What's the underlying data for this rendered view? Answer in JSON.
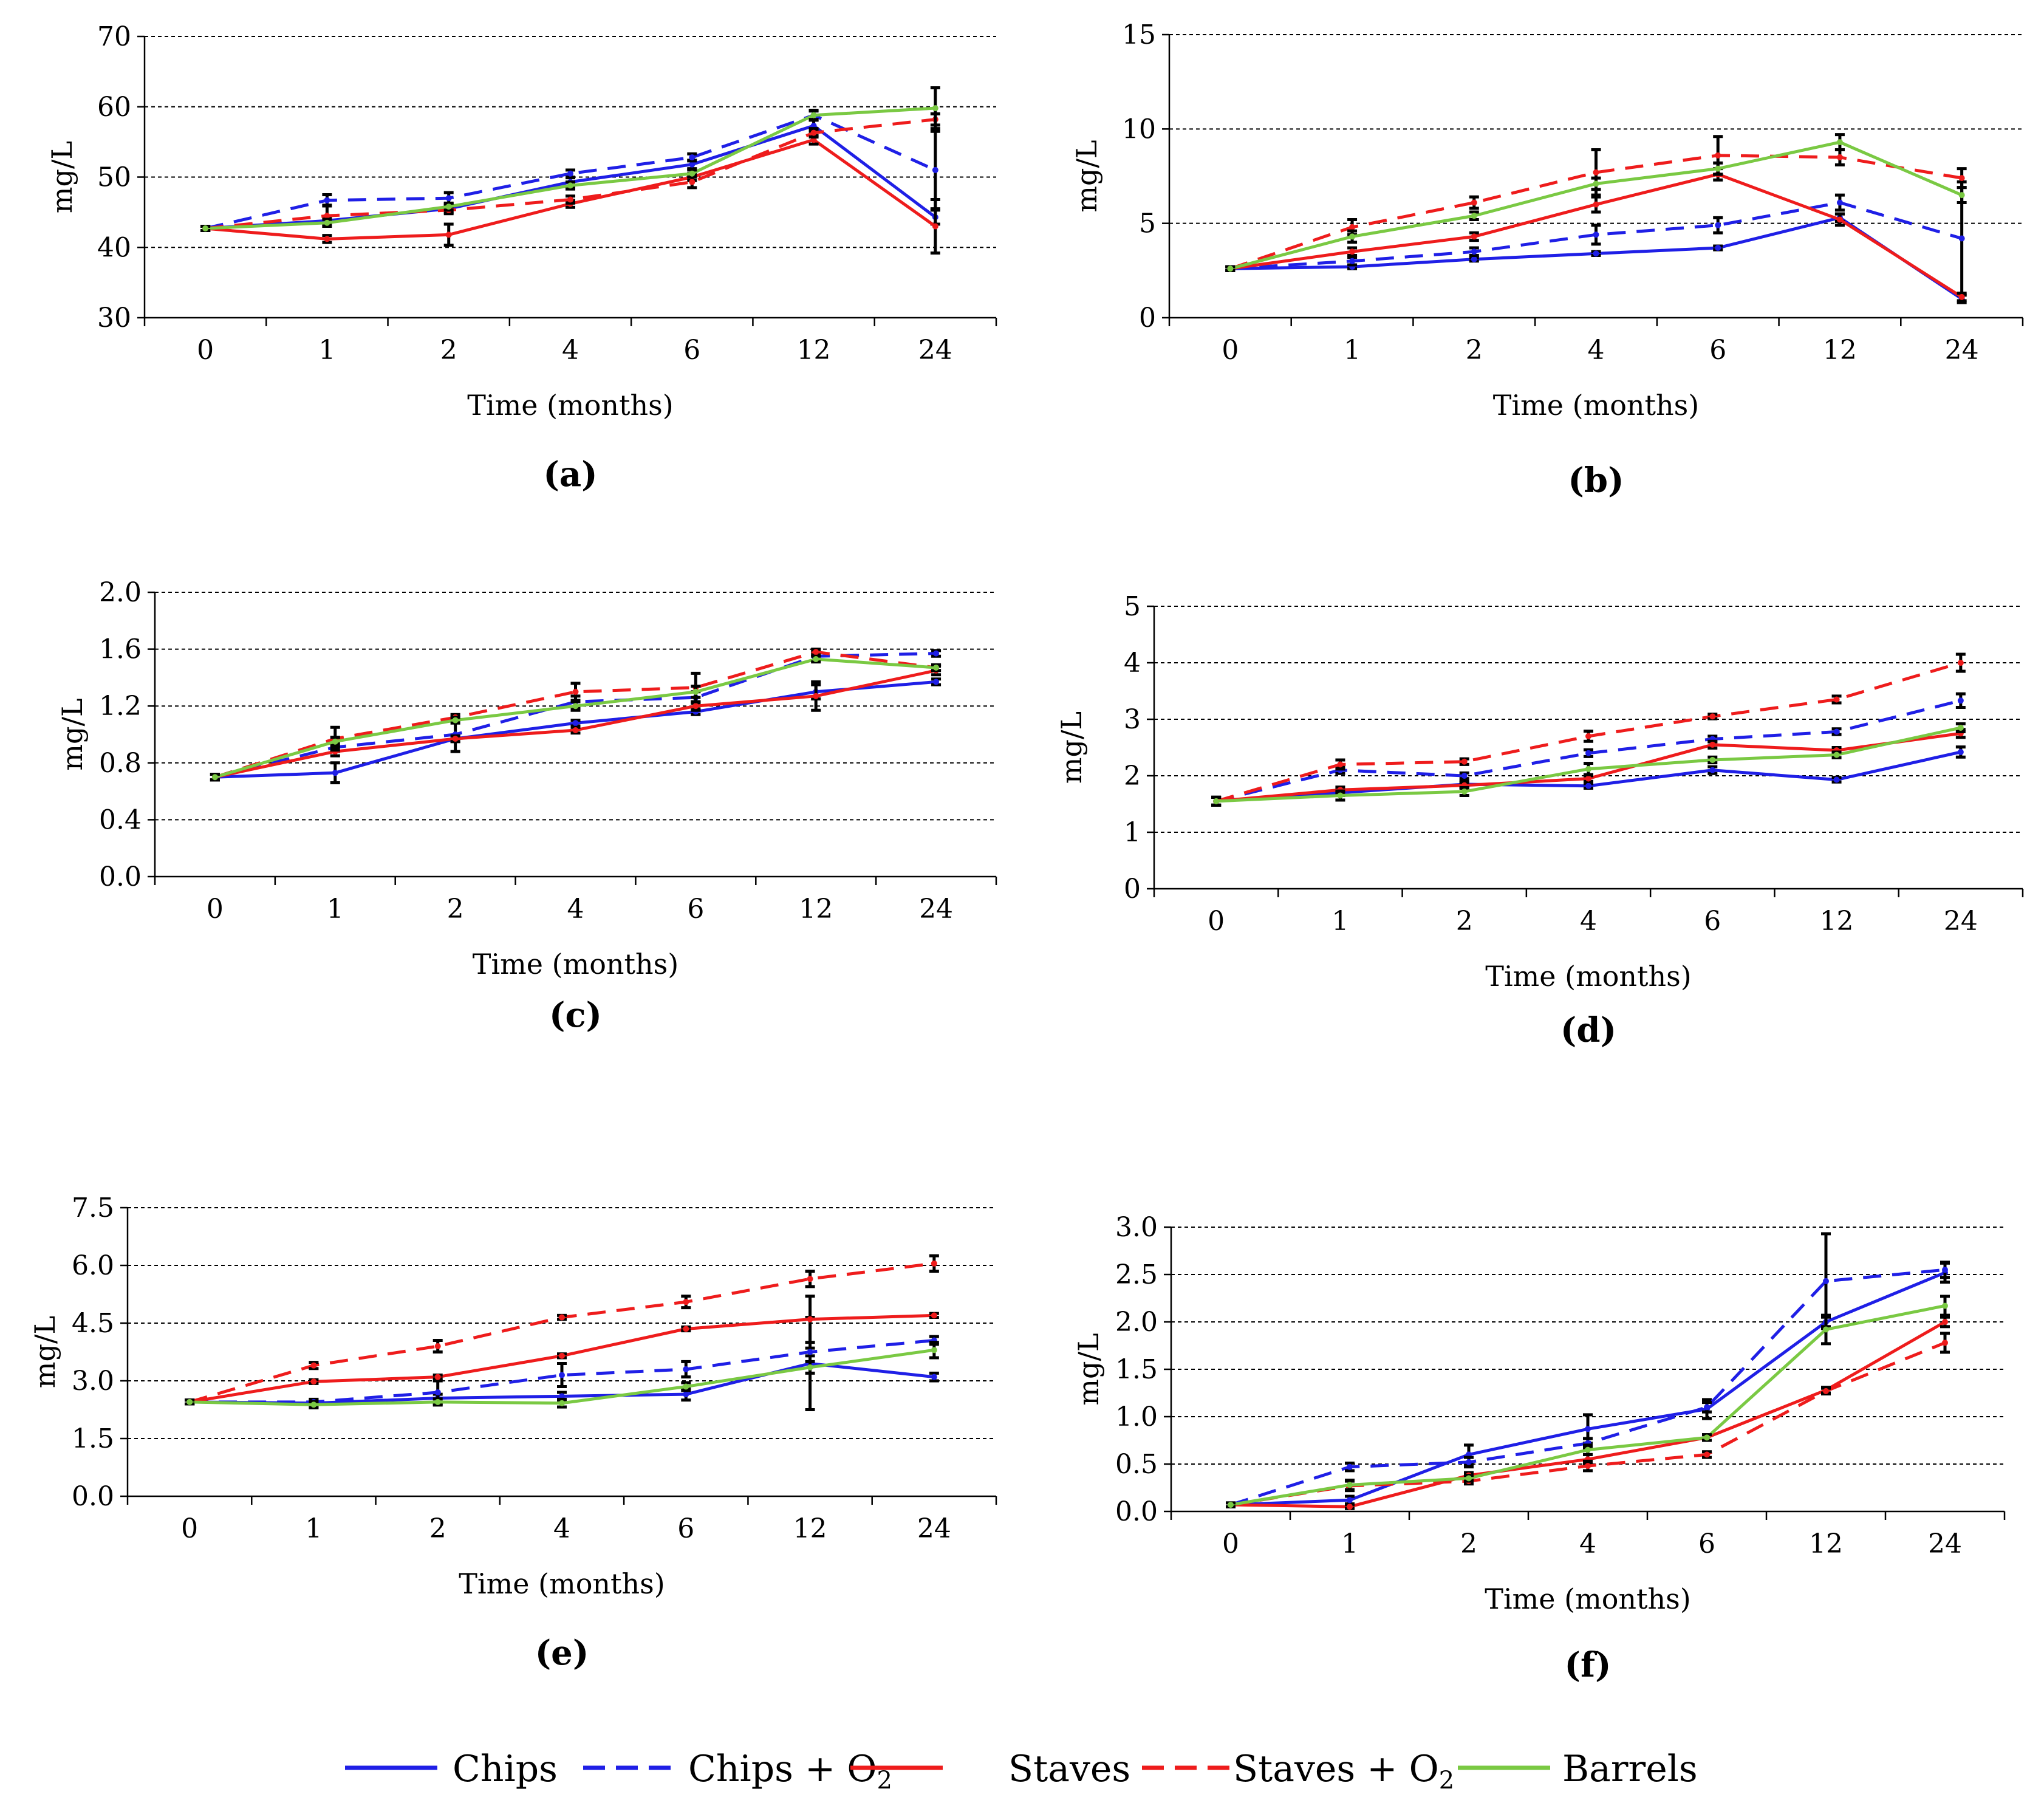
{
  "legend": [
    {
      "name": "Chips",
      "color": "#1f1fe6",
      "dash": false
    },
    {
      "name": "Chips + O",
      "sub": "2",
      "color": "#1f1fe6",
      "dash": true
    },
    {
      "name": "Staves",
      "color": "#ee1c1c",
      "dash": false
    },
    {
      "name": "Staves + O",
      "sub": "2",
      "color": "#ee1c1c",
      "dash": true
    },
    {
      "name": "Barrels",
      "color": "#7ac943",
      "dash": false
    }
  ],
  "chart_data": [
    {
      "type": "line",
      "label": "(a)",
      "xlabel": "Time (months)",
      "ylabel": "mg/L",
      "categories": [
        "0",
        "1",
        "2",
        "4",
        "6",
        "12",
        "24"
      ],
      "ylim": [
        30,
        70
      ],
      "yticks": [
        "30",
        "40",
        "50",
        "60",
        "70"
      ],
      "series": [
        {
          "name": "Chips",
          "values": [
            42.7,
            43.8,
            45.5,
            49.3,
            51.8,
            57.3,
            44.3
          ],
          "errors": [
            0.3,
            0.5,
            0.5,
            0.6,
            0.6,
            0.8,
            1.0
          ]
        },
        {
          "name": "Chips + O2",
          "values": [
            42.7,
            46.7,
            47.0,
            50.5,
            52.8,
            58.8,
            51.0
          ],
          "errors": [
            0.3,
            0.8,
            0.8,
            0.5,
            0.5,
            0.7,
            5.5
          ]
        },
        {
          "name": "Staves",
          "values": [
            42.7,
            41.2,
            41.8,
            46.2,
            50.0,
            55.3,
            43.0
          ],
          "errors": [
            0.3,
            0.5,
            1.5,
            0.5,
            0.5,
            0.6,
            3.8
          ]
        },
        {
          "name": "Staves + O2",
          "values": [
            42.7,
            44.5,
            45.3,
            46.8,
            49.3,
            56.3,
            58.2
          ],
          "errors": [
            0.3,
            1.5,
            0.5,
            0.5,
            0.8,
            0.6,
            0.8
          ]
        },
        {
          "name": "Barrels",
          "values": [
            42.7,
            43.5,
            45.8,
            48.8,
            50.5,
            58.8,
            59.8
          ],
          "errors": [
            0.3,
            0.5,
            0.5,
            0.5,
            0.5,
            0.6,
            2.9
          ]
        }
      ]
    },
    {
      "type": "line",
      "label": "(b)",
      "xlabel": "Time (months)",
      "ylabel": "mg/L",
      "categories": [
        "0",
        "1",
        "2",
        "4",
        "6",
        "12",
        "24"
      ],
      "ylim": [
        0,
        15
      ],
      "yticks": [
        "0",
        "5",
        "10",
        "15"
      ],
      "series": [
        {
          "name": "Chips",
          "values": [
            2.6,
            2.7,
            3.1,
            3.4,
            3.7,
            5.3,
            1.0
          ],
          "errors": [
            0.1,
            0.1,
            0.1,
            0.1,
            0.1,
            0.2,
            0.2
          ]
        },
        {
          "name": "Chips + O2",
          "values": [
            2.6,
            3.0,
            3.5,
            4.4,
            4.9,
            6.1,
            4.2
          ],
          "errors": [
            0.1,
            0.2,
            0.2,
            0.5,
            0.4,
            0.4,
            3.0
          ]
        },
        {
          "name": "Staves",
          "values": [
            2.6,
            3.5,
            4.3,
            6.0,
            7.6,
            5.2,
            1.1
          ],
          "errors": [
            0.1,
            0.2,
            0.2,
            0.4,
            0.3,
            0.3,
            0.2
          ]
        },
        {
          "name": "Staves + O2",
          "values": [
            2.6,
            4.8,
            6.1,
            7.7,
            8.6,
            8.5,
            7.4
          ],
          "errors": [
            0.1,
            0.4,
            0.3,
            1.2,
            1.0,
            0.4,
            0.5
          ]
        },
        {
          "name": "Barrels",
          "values": [
            2.6,
            4.3,
            5.4,
            7.1,
            7.9,
            9.3,
            6.5
          ],
          "errors": [
            0.1,
            0.3,
            0.2,
            0.3,
            0.3,
            0.4,
            0.4
          ]
        }
      ]
    },
    {
      "type": "line",
      "label": "(c)",
      "xlabel": "Time (months)",
      "ylabel": "mg/L",
      "categories": [
        "0",
        "1",
        "2",
        "4",
        "6",
        "12",
        "24"
      ],
      "ylim": [
        0.0,
        2.0
      ],
      "yticks": [
        "0.0",
        "0.4",
        "0.8",
        "1.2",
        "1.6",
        "2.0"
      ],
      "series": [
        {
          "name": "Chips",
          "values": [
            0.7,
            0.73,
            0.97,
            1.08,
            1.16,
            1.3,
            1.37
          ],
          "errors": [
            0.02,
            0.07,
            0.02,
            0.02,
            0.02,
            0.05,
            0.02
          ]
        },
        {
          "name": "Chips + O2",
          "values": [
            0.7,
            0.91,
            1.0,
            1.23,
            1.26,
            1.55,
            1.57
          ],
          "errors": [
            0.02,
            0.03,
            0.12,
            0.04,
            0.04,
            0.03,
            0.02
          ]
        },
        {
          "name": "Staves",
          "values": [
            0.7,
            0.88,
            0.97,
            1.03,
            1.2,
            1.27,
            1.45
          ],
          "errors": [
            0.02,
            0.03,
            0.02,
            0.02,
            0.03,
            0.1,
            0.03
          ]
        },
        {
          "name": "Staves + O2",
          "values": [
            0.7,
            0.97,
            1.12,
            1.3,
            1.33,
            1.58,
            1.47
          ],
          "errors": [
            0.02,
            0.08,
            0.02,
            0.06,
            0.1,
            0.02,
            0.02
          ]
        },
        {
          "name": "Barrels",
          "values": [
            0.7,
            0.95,
            1.1,
            1.2,
            1.3,
            1.53,
            1.47
          ],
          "errors": [
            0.02,
            0.03,
            0.02,
            0.03,
            0.04,
            0.02,
            0.02
          ]
        }
      ]
    },
    {
      "type": "line",
      "label": "(d)",
      "xlabel": "Time (months)",
      "ylabel": "mg/L",
      "categories": [
        "0",
        "1",
        "2",
        "4",
        "6",
        "12",
        "24"
      ],
      "ylim": [
        0,
        5
      ],
      "yticks": [
        "0",
        "1",
        "2",
        "3",
        "4",
        "5"
      ],
      "series": [
        {
          "name": "Chips",
          "values": [
            1.55,
            1.7,
            1.85,
            1.82,
            2.1,
            1.93,
            2.42
          ],
          "errors": [
            0.07,
            0.05,
            0.05,
            0.04,
            0.06,
            0.04,
            0.09
          ]
        },
        {
          "name": "Chips + O2",
          "values": [
            1.55,
            2.1,
            2.0,
            2.4,
            2.65,
            2.78,
            3.33
          ],
          "errors": [
            0.07,
            0.06,
            0.05,
            0.06,
            0.05,
            0.05,
            0.12
          ]
        },
        {
          "name": "Staves",
          "values": [
            1.55,
            1.75,
            1.83,
            1.95,
            2.55,
            2.45,
            2.75
          ],
          "errors": [
            0.07,
            0.05,
            0.05,
            0.05,
            0.06,
            0.05,
            0.07
          ]
        },
        {
          "name": "Staves + O2",
          "values": [
            1.55,
            2.2,
            2.25,
            2.7,
            3.05,
            3.35,
            4.0
          ],
          "errors": [
            0.07,
            0.08,
            0.05,
            0.09,
            0.04,
            0.06,
            0.15
          ]
        },
        {
          "name": "Barrels",
          "values": [
            1.55,
            1.65,
            1.72,
            2.12,
            2.28,
            2.37,
            2.85
          ],
          "errors": [
            0.07,
            0.08,
            0.07,
            0.1,
            0.05,
            0.05,
            0.07
          ]
        }
      ]
    },
    {
      "type": "line",
      "label": "(e)",
      "xlabel": "Time (months)",
      "ylabel": "mg/L",
      "categories": [
        "0",
        "1",
        "2",
        "4",
        "6",
        "12",
        "24"
      ],
      "ylim": [
        0.0,
        7.5
      ],
      "yticks": [
        "0.0",
        "1.5",
        "3.0",
        "4.5",
        "6.0",
        "7.5"
      ],
      "series": [
        {
          "name": "Chips",
          "values": [
            2.45,
            2.42,
            2.55,
            2.6,
            2.65,
            3.45,
            3.1
          ],
          "errors": [
            0.05,
            0.1,
            0.1,
            0.1,
            0.15,
            1.2,
            0.1
          ]
        },
        {
          "name": "Chips + O2",
          "values": [
            2.45,
            2.45,
            2.7,
            3.15,
            3.3,
            3.75,
            4.05
          ],
          "errors": [
            0.05,
            0.05,
            0.3,
            0.3,
            0.2,
            0.1,
            0.1
          ]
        },
        {
          "name": "Staves",
          "values": [
            2.45,
            2.98,
            3.1,
            3.65,
            4.35,
            4.6,
            4.7
          ],
          "errors": [
            0.05,
            0.05,
            0.05,
            0.05,
            0.05,
            0.6,
            0.05
          ]
        },
        {
          "name": "Staves + O2",
          "values": [
            2.45,
            3.4,
            3.9,
            4.65,
            5.05,
            5.65,
            6.05
          ],
          "errors": [
            0.05,
            0.08,
            0.15,
            0.05,
            0.15,
            0.2,
            0.2
          ]
        },
        {
          "name": "Barrels",
          "values": [
            2.45,
            2.38,
            2.45,
            2.42,
            2.85,
            3.35,
            3.8
          ],
          "errors": [
            0.05,
            0.08,
            0.08,
            0.1,
            0.1,
            0.15,
            0.2
          ]
        }
      ]
    },
    {
      "type": "line",
      "label": "(f)",
      "xlabel": "Time (months)",
      "ylabel": "mg/L",
      "categories": [
        "0",
        "1",
        "2",
        "4",
        "6",
        "12",
        "24"
      ],
      "ylim": [
        0.0,
        3.0
      ],
      "yticks": [
        "0.0",
        "0.5",
        "1.0",
        "1.5",
        "2.0",
        "2.5",
        "3.0"
      ],
      "series": [
        {
          "name": "Chips",
          "values": [
            0.07,
            0.12,
            0.6,
            0.87,
            1.08,
            2.0,
            2.52
          ],
          "errors": [
            0.02,
            0.04,
            0.1,
            0.15,
            0.1,
            0.05,
            0.1
          ]
        },
        {
          "name": "Chips + O2",
          "values": [
            0.07,
            0.47,
            0.52,
            0.72,
            1.1,
            2.43,
            2.55
          ],
          "errors": [
            0.02,
            0.04,
            0.05,
            0.05,
            0.05,
            0.5,
            0.08
          ]
        },
        {
          "name": "Staves",
          "values": [
            0.07,
            0.05,
            0.38,
            0.55,
            0.78,
            1.28,
            2.0
          ],
          "errors": [
            0.02,
            0.02,
            0.03,
            0.05,
            0.03,
            0.03,
            0.05
          ]
        },
        {
          "name": "Staves + O2",
          "values": [
            0.07,
            0.27,
            0.32,
            0.48,
            0.6,
            1.27,
            1.78
          ],
          "errors": [
            0.02,
            0.05,
            0.03,
            0.05,
            0.03,
            0.03,
            0.1
          ]
        },
        {
          "name": "Barrels",
          "values": [
            0.07,
            0.28,
            0.35,
            0.65,
            0.78,
            1.92,
            2.17
          ],
          "errors": [
            0.02,
            0.05,
            0.03,
            0.05,
            0.03,
            0.15,
            0.1
          ]
        }
      ]
    }
  ]
}
